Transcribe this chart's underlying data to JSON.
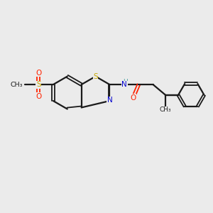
{
  "background_color": "#ebebeb",
  "bond_color": "#1a1a1a",
  "S_color": "#c8a800",
  "N_color": "#0000cc",
  "O_color": "#ff2200",
  "NH_color": "#4aa0a0",
  "figsize": [
    3.0,
    3.0
  ],
  "dpi": 100,
  "xlim": [
    0,
    10
  ],
  "ylim": [
    0,
    10
  ]
}
